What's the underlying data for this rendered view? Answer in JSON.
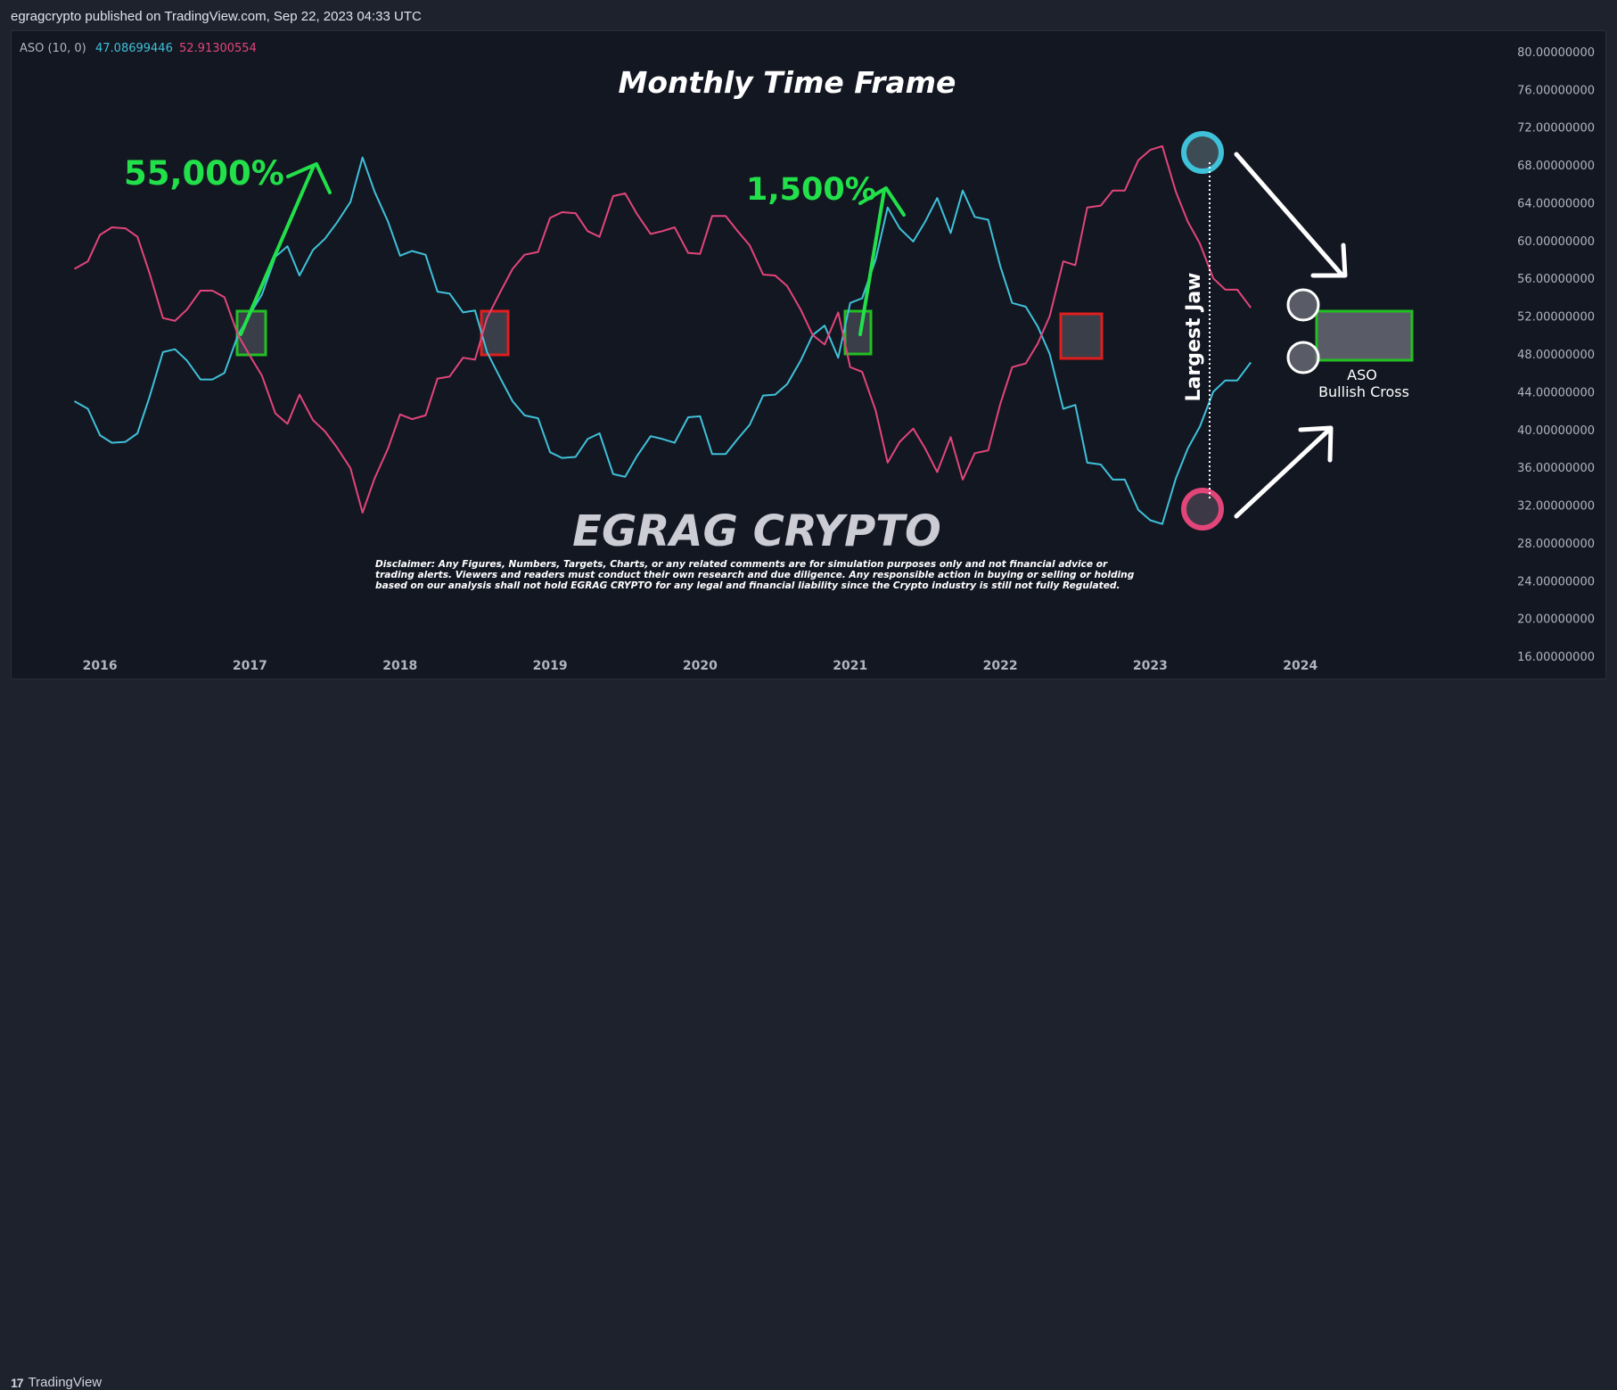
{
  "header": {
    "published": "egragcrypto published on TradingView.com, Sep 22, 2023 04:33 UTC"
  },
  "footer": {
    "brand": "TradingView",
    "logo_mark": "17"
  },
  "legend": {
    "name": "ASO (10, 0)",
    "value1": "47.08699446",
    "value2": "52.91300554",
    "color1": "#3fc1d9",
    "color2": "#e2457a"
  },
  "annotations": {
    "title": "Monthly Time Frame",
    "gain1": "55,000%",
    "gain2": "1,500%",
    "jaw": "Largest Jaw",
    "aso": "ASO",
    "cross": "Bullish Cross",
    "watermark": "EGRAG CRYPTO",
    "disclaimer": [
      "Disclaimer: Any Figures, Numbers, Targets, Charts, or any related comments are for simulation purposes only and not financial advice or",
      "trading alerts. Viewers and readers must conduct their own research and due diligence. Any responsible action in buying or selling or holding",
      "based on our analysis shall not hold EGRAG CRYPTO for any legal and financial liability since the Crypto industry is still not fully Regulated."
    ]
  },
  "colors": {
    "bull": "#3fc1d9",
    "bear": "#e2457a",
    "accent_green": "#22e04a",
    "box_green": "#22c022",
    "box_red": "#e01e1e"
  },
  "chart_data": {
    "type": "line",
    "title": "Monthly Time Frame",
    "x_ticks": [
      "2016",
      "2017",
      "2018",
      "2019",
      "2020",
      "2021",
      "2022",
      "2023",
      "2024"
    ],
    "y_ticks": [
      "80.00000000",
      "76.00000000",
      "72.00000000",
      "68.00000000",
      "64.00000000",
      "60.00000000",
      "56.00000000",
      "52.00000000",
      "48.00000000",
      "44.00000000",
      "40.00000000",
      "36.00000000",
      "32.00000000",
      "28.00000000",
      "24.00000000",
      "20.00000000",
      "16.00000000"
    ],
    "ylim": [
      14.5,
      81.5
    ],
    "xlim": [
      2015.75,
      2024.75
    ],
    "grid": false,
    "series": [
      {
        "name": "",
        "color": "#3fc1d9",
        "values": [
          [
            2015.83,
            43.0
          ],
          [
            2015.92,
            42.2
          ],
          [
            2016.0,
            39.4
          ],
          [
            2016.08,
            38.6
          ],
          [
            2016.17,
            38.7
          ],
          [
            2016.25,
            39.6
          ],
          [
            2016.33,
            43.4
          ],
          [
            2016.42,
            48.2
          ],
          [
            2016.5,
            48.5
          ],
          [
            2016.58,
            47.3
          ],
          [
            2016.67,
            45.3
          ],
          [
            2016.75,
            45.3
          ],
          [
            2016.83,
            46.0
          ],
          [
            2016.92,
            50.0
          ],
          [
            2017.0,
            52.2
          ],
          [
            2017.08,
            54.3
          ],
          [
            2017.17,
            58.3
          ],
          [
            2017.25,
            59.4
          ],
          [
            2017.33,
            56.3
          ],
          [
            2017.42,
            59.0
          ],
          [
            2017.5,
            60.2
          ],
          [
            2017.58,
            61.9
          ],
          [
            2017.67,
            64.1
          ],
          [
            2017.75,
            68.8
          ],
          [
            2017.83,
            65.2
          ],
          [
            2017.92,
            62.0
          ],
          [
            2018.0,
            58.4
          ],
          [
            2018.08,
            58.9
          ],
          [
            2018.17,
            58.5
          ],
          [
            2018.25,
            54.6
          ],
          [
            2018.33,
            54.4
          ],
          [
            2018.42,
            52.4
          ],
          [
            2018.5,
            52.6
          ],
          [
            2018.58,
            48.2
          ],
          [
            2018.67,
            45.4
          ],
          [
            2018.75,
            43.0
          ],
          [
            2018.83,
            41.5
          ],
          [
            2018.92,
            41.2
          ],
          [
            2019.0,
            37.6
          ],
          [
            2019.08,
            37.0
          ],
          [
            2019.17,
            37.1
          ],
          [
            2019.25,
            39.0
          ],
          [
            2019.33,
            39.6
          ],
          [
            2019.42,
            35.3
          ],
          [
            2019.5,
            35.0
          ],
          [
            2019.58,
            37.2
          ],
          [
            2019.67,
            39.3
          ],
          [
            2019.75,
            39.0
          ],
          [
            2019.83,
            38.6
          ],
          [
            2019.92,
            41.3
          ],
          [
            2020.0,
            41.4
          ],
          [
            2020.08,
            37.4
          ],
          [
            2020.17,
            37.4
          ],
          [
            2020.25,
            39.0
          ],
          [
            2020.33,
            40.5
          ],
          [
            2020.42,
            43.6
          ],
          [
            2020.5,
            43.7
          ],
          [
            2020.58,
            44.8
          ],
          [
            2020.67,
            47.3
          ],
          [
            2020.75,
            50.0
          ],
          [
            2020.83,
            51.0
          ],
          [
            2020.92,
            47.6
          ],
          [
            2021.0,
            53.4
          ],
          [
            2021.08,
            53.9
          ],
          [
            2021.17,
            58.0
          ],
          [
            2021.25,
            63.5
          ],
          [
            2021.33,
            61.3
          ],
          [
            2021.42,
            59.9
          ],
          [
            2021.5,
            62.0
          ],
          [
            2021.58,
            64.5
          ],
          [
            2021.67,
            60.8
          ],
          [
            2021.75,
            65.3
          ],
          [
            2021.83,
            62.5
          ],
          [
            2021.92,
            62.2
          ],
          [
            2022.0,
            57.3
          ],
          [
            2022.08,
            53.4
          ],
          [
            2022.17,
            53.0
          ],
          [
            2022.25,
            50.9
          ],
          [
            2022.33,
            48.0
          ],
          [
            2022.42,
            42.2
          ],
          [
            2022.5,
            42.6
          ],
          [
            2022.58,
            36.5
          ],
          [
            2022.67,
            36.3
          ],
          [
            2022.75,
            34.7
          ],
          [
            2022.83,
            34.7
          ],
          [
            2022.92,
            31.5
          ],
          [
            2023.0,
            30.4
          ],
          [
            2023.08,
            30.0
          ],
          [
            2023.17,
            34.8
          ],
          [
            2023.25,
            38.0
          ],
          [
            2023.33,
            40.3
          ],
          [
            2023.42,
            44.0
          ],
          [
            2023.5,
            45.2
          ],
          [
            2023.58,
            45.2
          ],
          [
            2023.67,
            47.1
          ]
        ]
      },
      {
        "name": "",
        "color": "#e2457a",
        "values": [
          [
            2015.83,
            57.0
          ],
          [
            2015.92,
            57.8
          ],
          [
            2016.0,
            60.6
          ],
          [
            2016.08,
            61.4
          ],
          [
            2016.17,
            61.3
          ],
          [
            2016.25,
            60.4
          ],
          [
            2016.33,
            56.6
          ],
          [
            2016.42,
            51.8
          ],
          [
            2016.5,
            51.5
          ],
          [
            2016.58,
            52.7
          ],
          [
            2016.67,
            54.7
          ],
          [
            2016.75,
            54.7
          ],
          [
            2016.83,
            54.0
          ],
          [
            2016.92,
            50.0
          ],
          [
            2017.0,
            47.8
          ],
          [
            2017.08,
            45.7
          ],
          [
            2017.17,
            41.7
          ],
          [
            2017.25,
            40.6
          ],
          [
            2017.33,
            43.7
          ],
          [
            2017.42,
            41.0
          ],
          [
            2017.5,
            39.8
          ],
          [
            2017.58,
            38.1
          ],
          [
            2017.67,
            35.9
          ],
          [
            2017.75,
            31.2
          ],
          [
            2017.83,
            34.8
          ],
          [
            2017.92,
            38.0
          ],
          [
            2018.0,
            41.6
          ],
          [
            2018.08,
            41.1
          ],
          [
            2018.17,
            41.5
          ],
          [
            2018.25,
            45.4
          ],
          [
            2018.33,
            45.6
          ],
          [
            2018.42,
            47.6
          ],
          [
            2018.5,
            47.4
          ],
          [
            2018.58,
            51.8
          ],
          [
            2018.67,
            54.6
          ],
          [
            2018.75,
            57.0
          ],
          [
            2018.83,
            58.5
          ],
          [
            2018.92,
            58.8
          ],
          [
            2019.0,
            62.4
          ],
          [
            2019.08,
            63.0
          ],
          [
            2019.17,
            62.9
          ],
          [
            2019.25,
            61.0
          ],
          [
            2019.33,
            60.4
          ],
          [
            2019.42,
            64.7
          ],
          [
            2019.5,
            65.0
          ],
          [
            2019.58,
            62.8
          ],
          [
            2019.67,
            60.7
          ],
          [
            2019.75,
            61.0
          ],
          [
            2019.83,
            61.4
          ],
          [
            2019.92,
            58.7
          ],
          [
            2020.0,
            58.6
          ],
          [
            2020.08,
            62.6
          ],
          [
            2020.17,
            62.6
          ],
          [
            2020.25,
            61.0
          ],
          [
            2020.33,
            59.5
          ],
          [
            2020.42,
            56.4
          ],
          [
            2020.5,
            56.3
          ],
          [
            2020.58,
            55.2
          ],
          [
            2020.67,
            52.7
          ],
          [
            2020.75,
            50.0
          ],
          [
            2020.83,
            49.0
          ],
          [
            2020.92,
            52.4
          ],
          [
            2021.0,
            46.6
          ],
          [
            2021.08,
            46.1
          ],
          [
            2021.17,
            42.0
          ],
          [
            2021.25,
            36.5
          ],
          [
            2021.33,
            38.7
          ],
          [
            2021.42,
            40.1
          ],
          [
            2021.5,
            38.0
          ],
          [
            2021.58,
            35.5
          ],
          [
            2021.67,
            39.2
          ],
          [
            2021.75,
            34.7
          ],
          [
            2021.83,
            37.5
          ],
          [
            2021.92,
            37.8
          ],
          [
            2022.0,
            42.7
          ],
          [
            2022.08,
            46.6
          ],
          [
            2022.17,
            47.0
          ],
          [
            2022.25,
            49.1
          ],
          [
            2022.33,
            52.0
          ],
          [
            2022.42,
            57.8
          ],
          [
            2022.5,
            57.4
          ],
          [
            2022.58,
            63.5
          ],
          [
            2022.67,
            63.7
          ],
          [
            2022.75,
            65.3
          ],
          [
            2022.83,
            65.3
          ],
          [
            2022.92,
            68.5
          ],
          [
            2023.0,
            69.6
          ],
          [
            2023.08,
            70.0
          ],
          [
            2023.17,
            65.2
          ],
          [
            2023.25,
            62.0
          ],
          [
            2023.33,
            59.7
          ],
          [
            2023.42,
            56.0
          ],
          [
            2023.5,
            54.8
          ],
          [
            2023.58,
            54.8
          ],
          [
            2023.67,
            52.9
          ]
        ]
      }
    ]
  }
}
